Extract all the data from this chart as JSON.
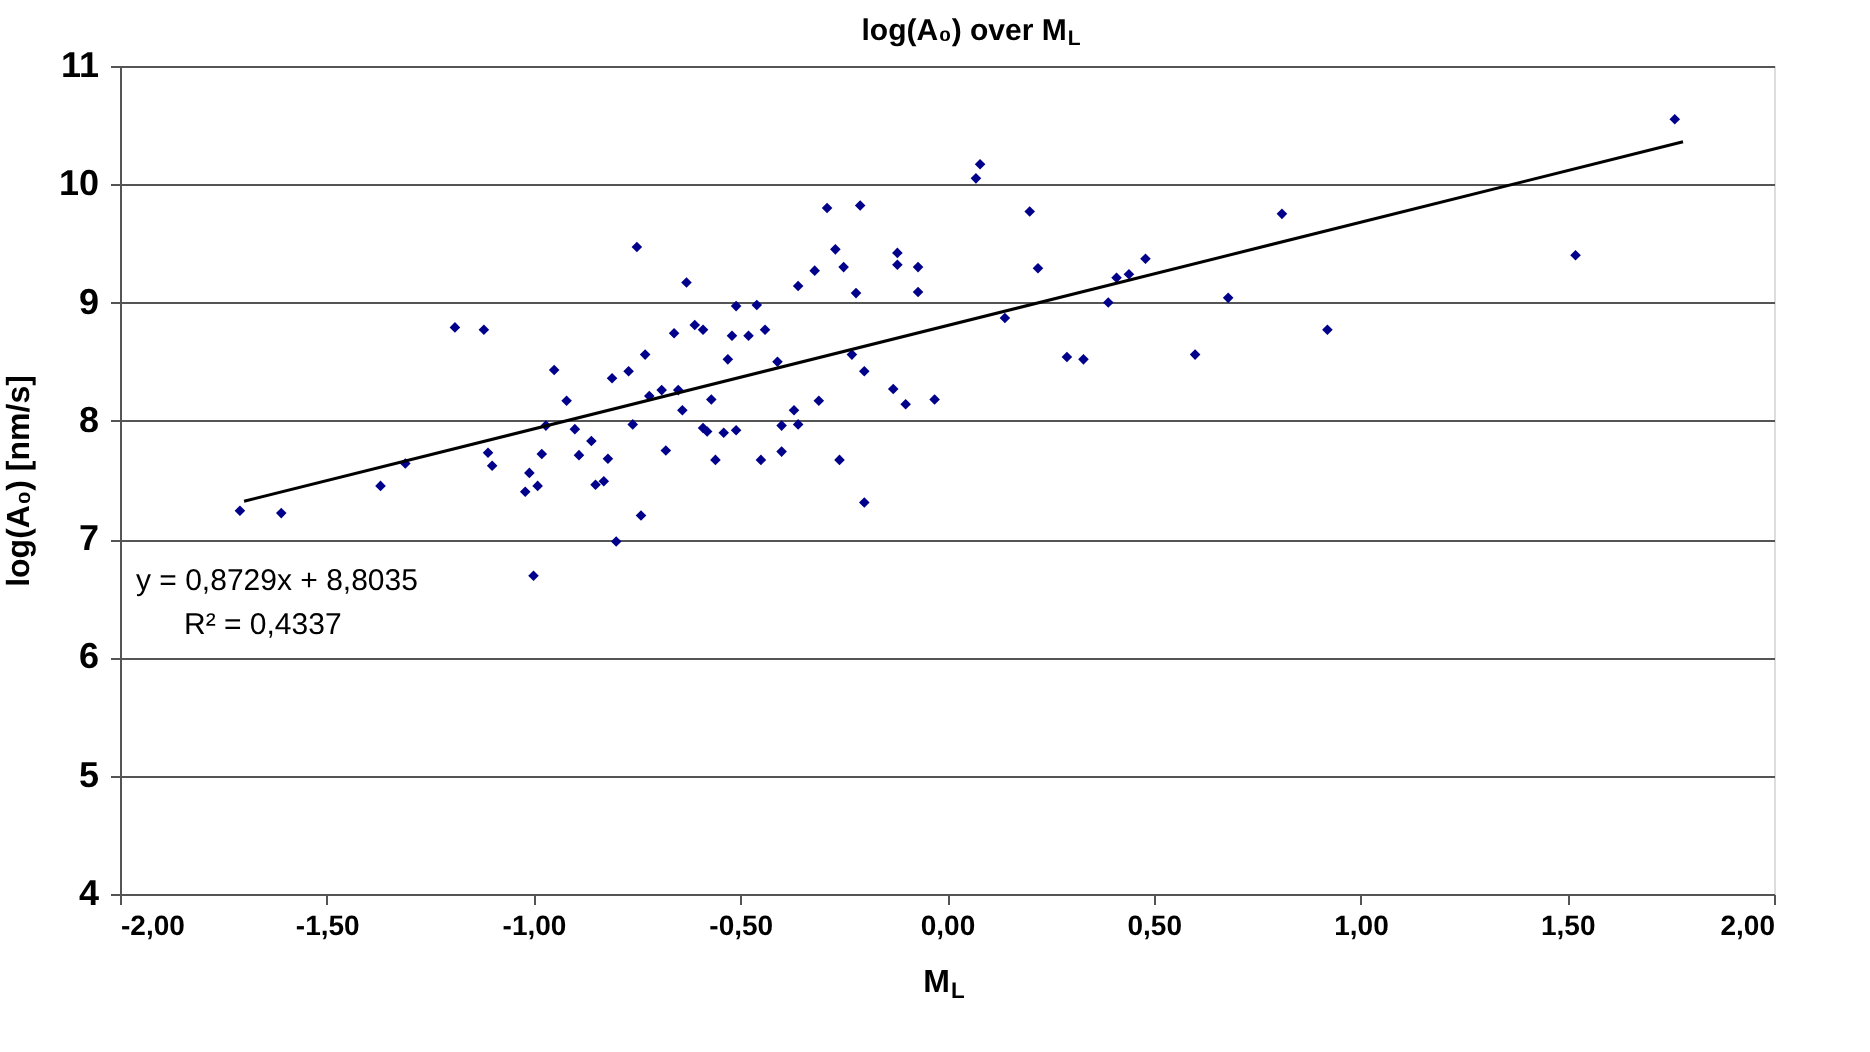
{
  "chart_data": {
    "type": "scatter",
    "title": "log(A₀) over M$_{L}$",
    "xlabel": "M$_{L}$",
    "ylabel": "log(A₀) [nm/s]",
    "xlim": [
      -2,
      2
    ],
    "xticks": [
      {
        "value": -2,
        "label": "-2,00"
      },
      {
        "value": -1.5,
        "label": "-1,50"
      },
      {
        "value": -1,
        "label": "-1,00"
      },
      {
        "value": -0.5,
        "label": "-0,50"
      },
      {
        "value": 0,
        "label": "0,00"
      },
      {
        "value": 0.5,
        "label": "0,50"
      },
      {
        "value": 1,
        "label": "1,00"
      },
      {
        "value": 1.5,
        "label": "1,50"
      },
      {
        "value": 2,
        "label": "2,00"
      }
    ],
    "ylim": [
      4,
      11
    ],
    "yticks": [
      4,
      5,
      6,
      7,
      8,
      9,
      10,
      11
    ],
    "grid": "y",
    "annotations": [
      "y = 0,8729x + 8,8035",
      "R² = 0,4337"
    ],
    "series": [
      {
        "marker": "diamond",
        "color": "#00008b",
        "x": [
          -0.29,
          -0.21,
          -0.75,
          -0.27,
          -0.25,
          -0.32,
          -0.36,
          -0.22,
          -0.63,
          -1.19,
          -1.12,
          -0.51,
          -0.46,
          -0.66,
          -0.61,
          -0.59,
          -0.52,
          -0.48,
          -0.44,
          -0.23,
          -0.2,
          -0.53,
          -0.41,
          -0.73,
          -0.77,
          -0.81,
          -0.95,
          -0.92,
          -0.72,
          -0.69,
          -0.65,
          -0.64,
          -0.57,
          -0.31,
          -0.37,
          -0.4,
          -0.36,
          -0.76,
          -0.97,
          -0.9,
          -0.86,
          -0.59,
          -0.58,
          -0.54,
          -0.51,
          -1.11,
          -1.1,
          -0.98,
          -0.89,
          -0.82,
          -0.68,
          -0.56,
          -0.45,
          -0.4,
          -0.26,
          -1.31,
          -1.01,
          -1.02,
          -0.99,
          -0.85,
          -0.83,
          -0.2,
          -0.74,
          -0.8,
          -1.0,
          0.08,
          0.07,
          0.2,
          0.81,
          -0.12,
          -0.12,
          -0.07,
          -0.07,
          0.22,
          0.48,
          0.44,
          0.41,
          0.39,
          0.68,
          0.14,
          -0.13,
          -0.1,
          -0.03,
          0.29,
          0.33,
          0.6,
          1.76,
          1.52,
          0.92,
          -1.71,
          -1.61,
          -1.37
        ],
        "values": [
          9.8,
          9.82,
          9.47,
          9.45,
          9.3,
          9.27,
          9.14,
          9.08,
          9.17,
          8.79,
          8.77,
          8.97,
          8.98,
          8.74,
          8.81,
          8.77,
          8.72,
          8.72,
          8.77,
          8.56,
          8.42,
          8.52,
          8.5,
          8.56,
          8.42,
          8.36,
          8.43,
          8.17,
          8.21,
          8.26,
          8.26,
          8.09,
          8.18,
          8.17,
          8.09,
          7.96,
          7.97,
          7.97,
          7.96,
          7.93,
          7.83,
          7.94,
          7.91,
          7.9,
          7.92,
          7.73,
          7.62,
          7.72,
          7.71,
          7.68,
          7.75,
          7.67,
          7.67,
          7.74,
          7.67,
          7.64,
          7.56,
          7.4,
          7.45,
          7.46,
          7.49,
          7.31,
          7.2,
          6.98,
          6.69,
          10.17,
          10.05,
          9.77,
          9.75,
          9.42,
          9.32,
          9.3,
          9.09,
          9.29,
          9.37,
          9.24,
          9.21,
          9.0,
          9.04,
          8.87,
          8.27,
          8.14,
          8.18,
          8.54,
          8.52,
          8.56,
          10.55,
          9.4,
          8.77,
          7.24,
          7.22,
          7.45
        ]
      },
      {
        "type": "line",
        "color": "#000000",
        "line_style": "solid",
        "x": [
          -1.7,
          1.78
        ],
        "values": [
          7.32,
          10.36
        ]
      }
    ]
  }
}
